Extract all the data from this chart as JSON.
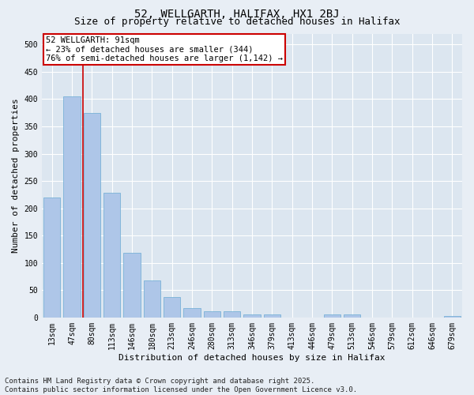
{
  "title1": "52, WELLGARTH, HALIFAX, HX1 2BJ",
  "title2": "Size of property relative to detached houses in Halifax",
  "xlabel": "Distribution of detached houses by size in Halifax",
  "ylabel": "Number of detached properties",
  "categories": [
    "13sqm",
    "47sqm",
    "80sqm",
    "113sqm",
    "146sqm",
    "180sqm",
    "213sqm",
    "246sqm",
    "280sqm",
    "313sqm",
    "346sqm",
    "379sqm",
    "413sqm",
    "446sqm",
    "479sqm",
    "513sqm",
    "546sqm",
    "579sqm",
    "612sqm",
    "646sqm",
    "679sqm"
  ],
  "values": [
    220,
    405,
    375,
    228,
    118,
    68,
    38,
    17,
    12,
    12,
    6,
    6,
    0,
    0,
    6,
    5,
    0,
    0,
    0,
    0,
    2
  ],
  "bar_color": "#aec6e8",
  "bar_edge_color": "#6aaad4",
  "vline_color": "#cc0000",
  "vline_pos": 1.57,
  "annotation_text": "52 WELLGARTH: 91sqm\n← 23% of detached houses are smaller (344)\n76% of semi-detached houses are larger (1,142) →",
  "annotation_box_color": "#cc0000",
  "ylim": [
    0,
    520
  ],
  "yticks": [
    0,
    50,
    100,
    150,
    200,
    250,
    300,
    350,
    400,
    450,
    500
  ],
  "footer": "Contains HM Land Registry data © Crown copyright and database right 2025.\nContains public sector information licensed under the Open Government Licence v3.0.",
  "bg_color": "#e8eef5",
  "plot_bg_color": "#dce6f0",
  "grid_color": "#ffffff",
  "title_fontsize": 10,
  "subtitle_fontsize": 9,
  "axis_label_fontsize": 8,
  "tick_fontsize": 7,
  "annot_fontsize": 7.5,
  "footer_fontsize": 6.5
}
